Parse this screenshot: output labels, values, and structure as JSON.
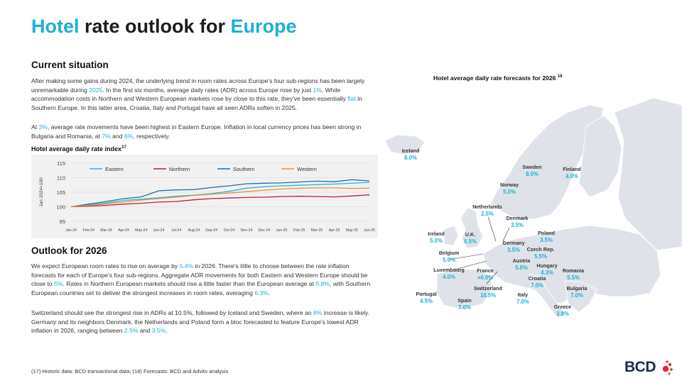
{
  "title": {
    "part1": "Hotel",
    "part2": " rate outlook for ",
    "part3": "Europe"
  },
  "current": {
    "heading": "Current situation",
    "p1": [
      {
        "t": "After making some gains during 2024, the underlying trend in room rates across Europe's four sub-regions has been largely unremarkable during "
      },
      {
        "t": "2025",
        "hl": true
      },
      {
        "t": ". In the first six months, average daily rates (ADR) across Europe rose by just "
      },
      {
        "t": "1%",
        "hl": true
      },
      {
        "t": ". While accommodation costs in Northern and Western European markets rose by close to this rate, they've been essentially "
      },
      {
        "t": "flat",
        "hl": true
      },
      {
        "t": " in Southern Europe. In this latter area, Croatia, Italy and Portugal have all seen ADRs soften in 2025."
      }
    ],
    "p2": [
      {
        "t": "At "
      },
      {
        "t": "3%",
        "hl": true
      },
      {
        "t": ", average rate movements have been highest in Eastern Europe. Inflation in local currency prices has been strong in Bulgaria and Romania, at "
      },
      {
        "t": "7%",
        "hl": true
      },
      {
        "t": " and "
      },
      {
        "t": "6%",
        "hl": true
      },
      {
        "t": ", respectively."
      }
    ]
  },
  "chart_title": "Hotel average daily rate index",
  "chart_title_sup": "17",
  "chart_data": {
    "type": "line",
    "title": "Hotel average daily rate index",
    "ylabel": "Jan 2024=100",
    "ylim": [
      95,
      115
    ],
    "yticks": [
      95,
      100,
      105,
      110,
      115
    ],
    "x": [
      "Jan-24",
      "Feb-24",
      "Mar-24",
      "Apr-24",
      "May-24",
      "Jun-24",
      "Jul-24",
      "Aug-24",
      "Sep-24",
      "Oct-24",
      "Nov-24",
      "Dec-24",
      "Jan-25",
      "Feb-25",
      "Mar-25",
      "Apr-25",
      "May-25",
      "Jun-25"
    ],
    "series": [
      {
        "name": "Eastern",
        "color": "#2ab7d8",
        "values": [
          100,
          100.6,
          101.3,
          102.2,
          102.6,
          103.1,
          103.6,
          104.0,
          104.5,
          105.3,
          106.4,
          106.9,
          107.2,
          107.4,
          107.6,
          107.8,
          108.1,
          108.4
        ]
      },
      {
        "name": "Northern",
        "color": "#c0203a",
        "values": [
          100,
          100.2,
          100.5,
          100.9,
          101.2,
          101.6,
          101.8,
          102.4,
          102.8,
          103.0,
          103.2,
          103.3,
          103.5,
          103.6,
          103.5,
          103.4,
          103.7,
          104.1
        ]
      },
      {
        "name": "Southern",
        "color": "#1e6fa8",
        "values": [
          100,
          100.9,
          101.8,
          102.8,
          103.4,
          105.5,
          105.8,
          105.9,
          106.6,
          107.2,
          107.9,
          108.1,
          108.2,
          108.5,
          108.8,
          108.6,
          109.3,
          108.9
        ]
      },
      {
        "name": "Western",
        "color": "#e8933a",
        "values": [
          100,
          100.4,
          101.0,
          101.6,
          102.3,
          102.8,
          103.3,
          103.9,
          104.3,
          104.7,
          105.2,
          105.7,
          106.1,
          106.4,
          106.5,
          106.5,
          106.3,
          106.4
        ]
      }
    ],
    "grid": true,
    "legend": "top"
  },
  "outlook": {
    "heading": "Outlook for 2026",
    "p1": [
      {
        "t": "We expect European room rates to rise on average by "
      },
      {
        "t": "5.4%",
        "hl": true
      },
      {
        "t": " in 2026. There's little to choose between the rate inflation forecasts for each of Europe's four sub-regions. Aggregate ADR movements for both Eastern and Western Europe should be close to "
      },
      {
        "t": "5%",
        "hl": true
      },
      {
        "t": ". Rates in Northern European markets should rise a little faster than the European average at "
      },
      {
        "t": "5.8%",
        "hl": true
      },
      {
        "t": ", with Southern European countries set to deliver the strongest increases in room rates, averaging "
      },
      {
        "t": "6.3%",
        "hl": true
      },
      {
        "t": "."
      }
    ],
    "p2": [
      {
        "t": "Switzerland should see the strongest rise in ADRs at 10.5%, followed by Iceland and Sweden, where an "
      },
      {
        "t": "8%",
        "hl": true
      },
      {
        "t": " increase is likely. Germany and its neighbors Denmark, the Netherlands and Poland form a bloc forecasted to feature Europe's lowest ADR inflation in 2026, ranging between "
      },
      {
        "t": "2.5%",
        "hl": true
      },
      {
        "t": " and "
      },
      {
        "t": "3.5%",
        "hl": true
      },
      {
        "t": "."
      }
    ]
  },
  "footnote": "(17) Historic data: BCD transactional data; (18) Forecasts: BCD and Advito analysis",
  "map": {
    "title": "Hotel average daily rate forecasts for 2026",
    "title_sup": "18",
    "countries": [
      {
        "name": "Iceland",
        "value": "8.0%"
      },
      {
        "name": "Sweden",
        "value": "8.0%"
      },
      {
        "name": "Finland",
        "value": "4.0%"
      },
      {
        "name": "Norway",
        "value": "5.0%"
      },
      {
        "name": "Netherlands",
        "value": "2.5%"
      },
      {
        "name": "Denmark",
        "value": "3.5%"
      },
      {
        "name": "Ireland",
        "value": "5.0%"
      },
      {
        "name": "U.K.",
        "value": "6.5%"
      },
      {
        "name": "Poland",
        "value": "3.5%"
      },
      {
        "name": "Germany",
        "value": "3.5%"
      },
      {
        "name": "Czech Rep.",
        "value": "5.5%"
      },
      {
        "name": "Belgium",
        "value": "5.0%"
      },
      {
        "name": "Austria",
        "value": "5.0%"
      },
      {
        "name": "Hungary",
        "value": "4.3%"
      },
      {
        "name": "Luxembourg",
        "value": "4.0%"
      },
      {
        "name": "France",
        "value": "+6.0%"
      },
      {
        "name": "Romania",
        "value": "5.5%"
      },
      {
        "name": "Croatia",
        "value": "7.0%"
      },
      {
        "name": "Switzerland",
        "value": "10.5%"
      },
      {
        "name": "Bulgaria",
        "value": "7.0%"
      },
      {
        "name": "Portugal",
        "value": "4.5%"
      },
      {
        "name": "Spain",
        "value": "7.0%"
      },
      {
        "name": "Italy",
        "value": "7.0%"
      },
      {
        "name": "Greece",
        "value": "3.8%"
      }
    ]
  },
  "logo": {
    "text": "BCD",
    "colors": [
      "#1c2a4a",
      "#e3262e"
    ]
  }
}
